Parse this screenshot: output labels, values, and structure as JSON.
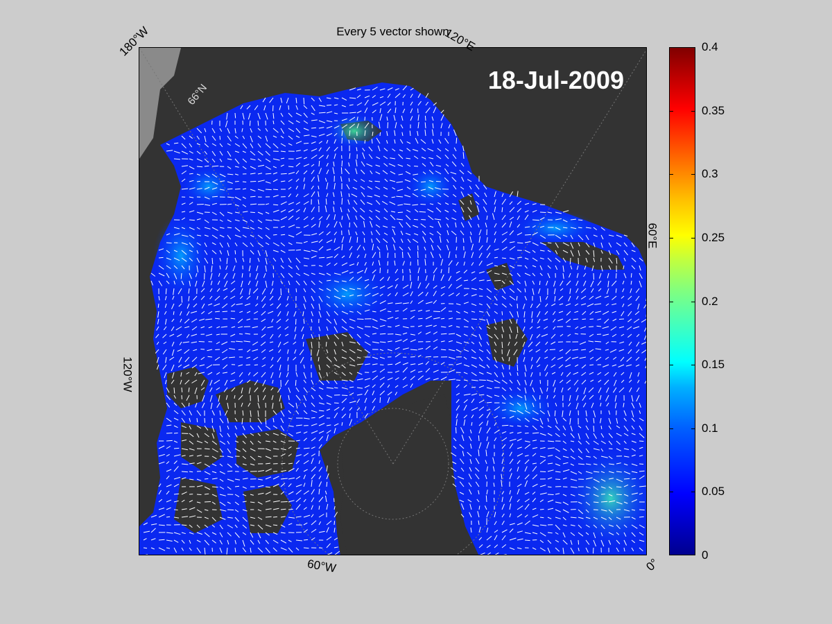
{
  "title": "Every 5 vector shown",
  "date_label": "18-Jul-2009",
  "longitude_labels": {
    "top_left": "180°W",
    "top_right": "120°E",
    "right": "60°E",
    "bottom_right": "0°",
    "bottom": "60°W",
    "left": "120°W"
  },
  "latitude_label": "66°N",
  "colorbar": {
    "ticks": [
      "0",
      "0.05",
      "0.1",
      "0.15",
      "0.2",
      "0.25",
      "0.3",
      "0.35",
      "0.4"
    ],
    "min": 0,
    "max": 0.4,
    "colormap": "jet"
  },
  "colors": {
    "land": "#333333",
    "outside_domain": "#8a8a8a",
    "ice_low": "#0000ff",
    "vector": "#ffffff"
  }
}
